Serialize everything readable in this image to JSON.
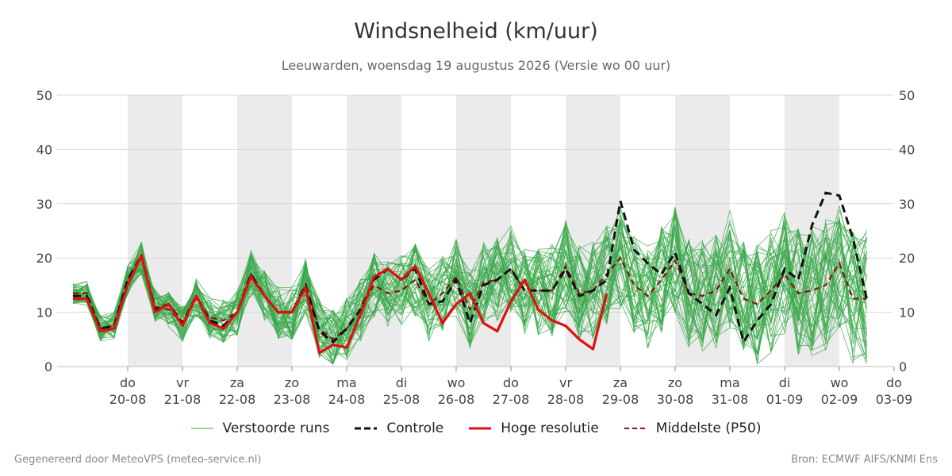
{
  "header": {
    "title": "Windsnelheid (km/uur)",
    "subtitle": "Leeuwarden, woensdag 19 augustus 2026 (Versie wo 00 uur)"
  },
  "legend": [
    {
      "label": "Verstoorde runs",
      "color": "#3aa84a",
      "style": "thin"
    },
    {
      "label": "Controle",
      "color": "#111111",
      "style": "dashed"
    },
    {
      "label": "Hoge resolutie",
      "color": "#e01010",
      "style": "solid"
    },
    {
      "label": "Middelste (P50)",
      "color": "#8b1010",
      "style": "dashed-thin"
    }
  ],
  "footer": {
    "left": "Gegenereerd door MeteoVPS (meteo-service.nl)",
    "right": "Bron: ECMWF AIFS/KNMI Ens"
  },
  "chart_data": {
    "type": "line",
    "title": "Windsnelheid (km/uur)",
    "ylim": [
      0,
      50
    ],
    "yticks": [
      0,
      10,
      20,
      30,
      40,
      50
    ],
    "x_start_day": 0,
    "x_end_day": 15,
    "x_step_days": 0.25,
    "x_ticks": [
      {
        "day": 1,
        "label1": "do",
        "label2": "20-08"
      },
      {
        "day": 2,
        "label1": "vr",
        "label2": "21-08"
      },
      {
        "day": 3,
        "label1": "za",
        "label2": "22-08"
      },
      {
        "day": 4,
        "label1": "zo",
        "label2": "23-08"
      },
      {
        "day": 5,
        "label1": "ma",
        "label2": "24-08"
      },
      {
        "day": 6,
        "label1": "di",
        "label2": "25-08"
      },
      {
        "day": 7,
        "label1": "wo",
        "label2": "26-08"
      },
      {
        "day": 8,
        "label1": "do",
        "label2": "27-08"
      },
      {
        "day": 9,
        "label1": "vr",
        "label2": "28-08"
      },
      {
        "day": 10,
        "label1": "za",
        "label2": "29-08"
      },
      {
        "day": 11,
        "label1": "zo",
        "label2": "30-08"
      },
      {
        "day": 12,
        "label1": "ma",
        "label2": "31-08"
      },
      {
        "day": 13,
        "label1": "di",
        "label2": "01-09"
      },
      {
        "day": 14,
        "label1": "wo",
        "label2": "02-09"
      },
      {
        "day": 15,
        "label1": "do",
        "label2": "03-09"
      }
    ],
    "shaded_days": [
      1,
      3,
      5,
      7,
      9,
      11,
      13
    ],
    "series": [
      {
        "name": "Middelste (P50)",
        "values": [
          13.5,
          13.5,
          7,
          7.5,
          16,
          20,
          11,
          10.5,
          8,
          12.5,
          9,
          8.5,
          10,
          17,
          13,
          10,
          10,
          15,
          7,
          5,
          7,
          10.5,
          15,
          13.5,
          14,
          16,
          11.5,
          13.5,
          16.5,
          10.5,
          15.5,
          16,
          18,
          14,
          14,
          14,
          18.5,
          13.5,
          14,
          17,
          20,
          15,
          13,
          16,
          19.5,
          13.5,
          13,
          14,
          18,
          12.5,
          11.5,
          14,
          17,
          13.5,
          14,
          15,
          19,
          12.5,
          12.5
        ]
      },
      {
        "name": "Controle",
        "values": [
          13,
          13,
          7,
          7.5,
          16,
          20.5,
          10.5,
          11.5,
          8,
          13,
          8.5,
          7.5,
          10,
          17,
          13,
          10,
          10,
          15,
          6.5,
          4.5,
          7,
          10.5,
          16,
          18,
          16,
          18,
          11.5,
          12,
          16,
          8,
          15,
          16,
          18,
          14,
          14,
          14,
          18,
          13,
          14,
          16,
          30.5,
          21.5,
          19,
          17,
          21,
          13.5,
          11.5,
          9.5,
          14.5,
          4.5,
          8.5,
          11.5,
          18,
          16,
          26,
          32,
          31.5,
          23.5,
          12.5
        ]
      },
      {
        "name": "Hoge resolutie",
        "values": [
          12.5,
          12.5,
          6.5,
          7,
          15,
          20.5,
          10,
          11.5,
          7.5,
          13,
          8,
          7,
          10,
          16.5,
          13,
          10,
          10,
          14.5,
          2.5,
          4,
          3.5,
          9.5,
          16.5,
          18,
          16,
          18.5,
          13.5,
          8,
          11.5,
          13.5,
          8,
          6.5,
          12,
          16,
          10.5,
          8.5,
          7.5,
          5,
          3.2,
          13.5
        ]
      }
    ]
  }
}
